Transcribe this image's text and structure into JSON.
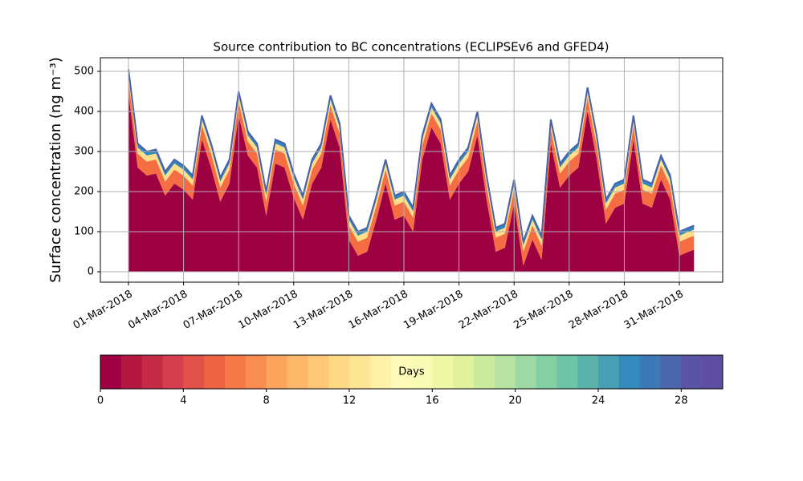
{
  "chart_data": {
    "type": "stacked_area",
    "title": "Source contribution to BC concentrations (ECLIPSEv6 and GFED4)",
    "y_label": "Surface concentration (ng m⁻³)",
    "x": [
      0,
      0.5,
      1,
      1.5,
      2,
      2.5,
      3,
      3.5,
      4,
      4.5,
      5,
      5.5,
      6,
      6.5,
      7,
      7.5,
      8,
      8.5,
      9,
      9.5,
      10,
      10.5,
      11,
      11.5,
      12,
      12.5,
      13,
      13.5,
      14,
      14.5,
      15,
      15.5,
      16,
      16.5,
      17,
      17.5,
      18,
      18.5,
      19,
      19.5,
      20,
      20.5,
      21,
      21.5,
      22,
      22.5,
      23,
      23.5,
      24,
      24.5,
      25,
      25.5,
      26,
      26.5,
      27,
      27.5,
      28,
      28.5,
      29,
      29.5,
      30,
      30.5,
      30.8
    ],
    "series": [
      {
        "color": "#9e0142",
        "values": [
          445,
          260,
          240,
          245,
          190,
          220,
          205,
          180,
          330,
          260,
          175,
          220,
          390,
          290,
          260,
          140,
          270,
          260,
          185,
          130,
          220,
          260,
          380,
          310,
          80,
          40,
          50,
          130,
          220,
          130,
          140,
          100,
          280,
          360,
          320,
          180,
          220,
          250,
          340,
          180,
          50,
          60,
          170,
          15,
          80,
          30,
          320,
          210,
          240,
          260,
          400,
          280,
          120,
          160,
          170,
          330,
          170,
          160,
          230,
          180,
          40,
          50,
          55
        ]
      },
      {
        "color": "#f46d43",
        "values": [
          35,
          35,
          35,
          35,
          35,
          35,
          35,
          35,
          35,
          35,
          35,
          35,
          35,
          35,
          35,
          35,
          35,
          35,
          35,
          35,
          35,
          35,
          35,
          35,
          35,
          35,
          35,
          35,
          35,
          35,
          35,
          35,
          35,
          35,
          35,
          35,
          35,
          35,
          35,
          35,
          35,
          35,
          35,
          35,
          35,
          35,
          35,
          35,
          35,
          35,
          35,
          35,
          35,
          35,
          35,
          35,
          35,
          35,
          35,
          35,
          35,
          35,
          35
        ]
      },
      {
        "color": "#fee08b",
        "values": [
          15,
          15,
          15,
          15,
          15,
          15,
          15,
          15,
          15,
          15,
          15,
          15,
          15,
          15,
          15,
          15,
          15,
          15,
          15,
          15,
          15,
          15,
          15,
          15,
          15,
          15,
          15,
          15,
          15,
          15,
          15,
          15,
          15,
          15,
          15,
          15,
          15,
          15,
          15,
          15,
          15,
          15,
          15,
          15,
          15,
          15,
          15,
          15,
          15,
          15,
          15,
          15,
          15,
          15,
          15,
          15,
          15,
          15,
          15,
          15,
          15,
          15,
          15
        ]
      },
      {
        "color": "#3288bd",
        "values": [
          10,
          10,
          10,
          10,
          10,
          10,
          10,
          10,
          10,
          10,
          10,
          10,
          10,
          10,
          10,
          10,
          10,
          10,
          10,
          10,
          10,
          10,
          10,
          10,
          10,
          10,
          10,
          10,
          10,
          10,
          10,
          10,
          10,
          10,
          10,
          10,
          10,
          10,
          10,
          10,
          10,
          10,
          10,
          10,
          10,
          10,
          10,
          10,
          10,
          10,
          10,
          10,
          10,
          10,
          10,
          10,
          10,
          10,
          10,
          10,
          10,
          10,
          10
        ]
      }
    ],
    "line_color": "#4a60a8",
    "xlim": [
      -1.53,
      32.36
    ],
    "ylim": [
      -26,
      534
    ],
    "xticks": [
      {
        "value": 0,
        "label": "01-Mar-2018"
      },
      {
        "value": 3,
        "label": "04-Mar-2018"
      },
      {
        "value": 6,
        "label": "07-Mar-2018"
      },
      {
        "value": 9,
        "label": "10-Mar-2018"
      },
      {
        "value": 12,
        "label": "13-Mar-2018"
      },
      {
        "value": 15,
        "label": "16-Mar-2018"
      },
      {
        "value": 18,
        "label": "19-Mar-2018"
      },
      {
        "value": 21,
        "label": "22-Mar-2018"
      },
      {
        "value": 24,
        "label": "25-Mar-2018"
      },
      {
        "value": 27,
        "label": "28-Mar-2018"
      },
      {
        "value": 30,
        "label": "31-Mar-2018"
      }
    ],
    "yticks": [
      0,
      100,
      200,
      300,
      400,
      500
    ],
    "grid": true,
    "colorbar": {
      "label": "Days",
      "lim": [
        0,
        30
      ],
      "ticks": [
        0,
        4,
        8,
        12,
        16,
        20,
        24,
        28
      ],
      "colors": [
        "#9e0142",
        "#b3173f",
        "#c52a45",
        "#d53e4f",
        "#e2524a",
        "#ed6344",
        "#f67a49",
        "#f98e52",
        "#fca55d",
        "#fdb768",
        "#fec776",
        "#fed884",
        "#fee593",
        "#fff1a8",
        "#fffbb8",
        "#f8fcb5",
        "#eef8a4",
        "#e1f29b",
        "#cdeb9e",
        "#b7e2a1",
        "#9ed8a4",
        "#85cfa5",
        "#6ec4a6",
        "#5bb2aa",
        "#479fb3",
        "#3489bd",
        "#3d79b7",
        "#4b66ad",
        "#5954a4",
        "#5e4fa2"
      ]
    }
  }
}
